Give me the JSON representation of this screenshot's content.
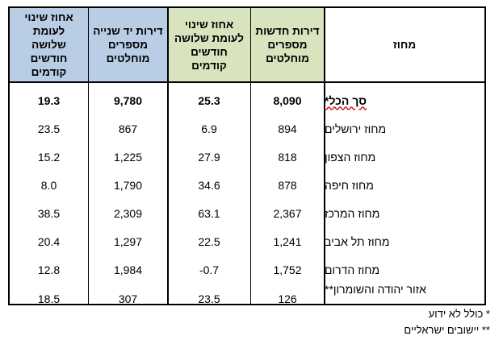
{
  "headers": {
    "col1": "אחוז שינוי לעומת שלושה חודשים קודמים",
    "col2": "דירות יד שנייה מספרים מוחלטים",
    "col3": "אחוז שינוי לעומת שלושה חודשים קודמים",
    "col4": "דירות חדשות מספרים מוחלטים",
    "col5": "מחוז"
  },
  "colors": {
    "used_header": "#b9cde5",
    "new_header": "#d7e4bd"
  },
  "rows": [
    {
      "district": "סך הכל*",
      "used_change": "19.3",
      "used_abs": "9,780",
      "new_change": "25.3",
      "new_abs": "8,090"
    },
    {
      "district": "מחוז ירושלים",
      "used_change": "23.5",
      "used_abs": "867",
      "new_change": "6.9",
      "new_abs": "894"
    },
    {
      "district": "מחוז הצפון",
      "used_change": "15.2",
      "used_abs": "1,225",
      "new_change": "27.9",
      "new_abs": "818"
    },
    {
      "district": "מחוז חיפה",
      "used_change": "8.0",
      "used_abs": "1,790",
      "new_change": "34.6",
      "new_abs": "878"
    },
    {
      "district": "מחוז המרכז",
      "used_change": "38.5",
      "used_abs": "2,309",
      "new_change": "63.1",
      "new_abs": "2,367"
    },
    {
      "district": "מחוז תל אביב",
      "used_change": "20.4",
      "used_abs": "1,297",
      "new_change": "22.5",
      "new_abs": "1,241"
    },
    {
      "district": "מחוז הדרום",
      "used_change": "12.8",
      "used_abs": "1,984",
      "new_change": "-0.7",
      "new_abs": "1,752"
    },
    {
      "district": "אזור יהודה והשומרון**",
      "used_change": "18.5",
      "used_abs": "307",
      "new_change": "23.5",
      "new_abs": "126"
    }
  ],
  "footnotes": [
    "* כולל לא ידוע",
    "** יישובים ישראליים"
  ]
}
